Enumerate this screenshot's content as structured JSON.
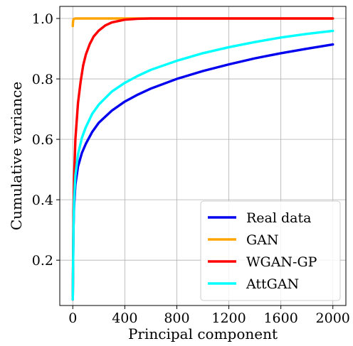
{
  "chart_data": {
    "type": "line",
    "title": "",
    "xlabel": "Principal component",
    "ylabel": "Cumulative variance",
    "xlim": [
      -100,
      2100
    ],
    "ylim": [
      0.05,
      1.04
    ],
    "xticks": [
      0,
      400,
      800,
      1200,
      1600,
      2000
    ],
    "yticks": [
      0.2,
      0.4,
      0.6,
      0.8,
      1.0
    ],
    "xtick_labels": [
      "0",
      "400",
      "800",
      "1200",
      "1600",
      "2000"
    ],
    "ytick_labels": [
      "0.2",
      "0.4",
      "0.6",
      "0.8",
      "1.0"
    ],
    "grid": true,
    "legend_position": "bottom-right",
    "series": [
      {
        "name": "Real data",
        "color": "#0000ee",
        "x": [
          0,
          5,
          10,
          20,
          40,
          70,
          100,
          150,
          200,
          300,
          400,
          500,
          600,
          800,
          1000,
          1200,
          1400,
          1600,
          1800,
          2000
        ],
        "y": [
          0.07,
          0.3,
          0.38,
          0.45,
          0.51,
          0.555,
          0.585,
          0.625,
          0.655,
          0.695,
          0.725,
          0.748,
          0.768,
          0.8,
          0.826,
          0.848,
          0.868,
          0.885,
          0.9,
          0.914
        ]
      },
      {
        "name": "GAN",
        "color": "#ffa500",
        "x": [
          0,
          2,
          5,
          10,
          20,
          50,
          100,
          500,
          1000,
          2000
        ],
        "y": [
          0.975,
          0.99,
          0.997,
          0.999,
          1.0,
          1.0,
          1.0,
          1.0,
          1.0,
          1.0
        ]
      },
      {
        "name": "WGAN-GP",
        "color": "#ff0000",
        "x": [
          0,
          5,
          10,
          20,
          40,
          60,
          80,
          100,
          130,
          160,
          200,
          250,
          300,
          400,
          500,
          600,
          800,
          1000,
          2000
        ],
        "y": [
          0.07,
          0.36,
          0.47,
          0.6,
          0.72,
          0.79,
          0.845,
          0.88,
          0.915,
          0.94,
          0.96,
          0.977,
          0.987,
          0.996,
          0.999,
          1.0,
          1.0,
          1.0,
          1.0
        ]
      },
      {
        "name": "AttGAN",
        "color": "#00ffff",
        "x": [
          0,
          5,
          10,
          20,
          40,
          70,
          100,
          150,
          200,
          300,
          400,
          500,
          600,
          800,
          1000,
          1200,
          1400,
          1600,
          1800,
          2000
        ],
        "y": [
          0.07,
          0.3,
          0.4,
          0.48,
          0.55,
          0.605,
          0.64,
          0.685,
          0.715,
          0.758,
          0.787,
          0.81,
          0.83,
          0.86,
          0.885,
          0.905,
          0.922,
          0.937,
          0.949,
          0.959
        ]
      }
    ]
  }
}
